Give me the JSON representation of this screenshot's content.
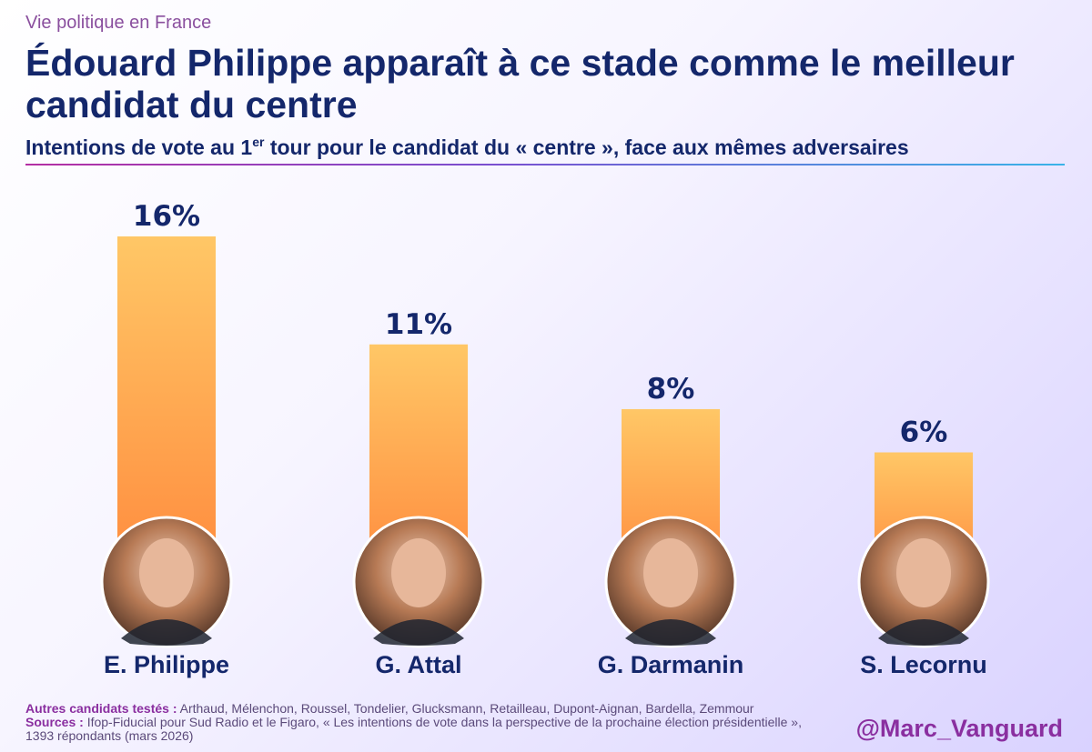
{
  "header": {
    "kicker": "Vie politique en France",
    "title": "Édouard Philippe apparaît à ce stade comme le meilleur candidat du centre",
    "subtitle_pre": "Intentions de vote au 1",
    "subtitle_sup": "er",
    "subtitle_post": " tour pour le candidat du « centre », face aux mêmes adversaires"
  },
  "chart_data": {
    "type": "bar",
    "categories": [
      "E. Philippe",
      "G. Attal",
      "G. Darmanin",
      "S. Lecornu"
    ],
    "values": [
      16,
      11,
      8,
      6
    ],
    "value_labels": [
      "16%",
      "11%",
      "8%",
      "6%"
    ],
    "unit": "%",
    "title": "Intentions de vote au 1er tour pour le candidat du « centre », face aux mêmes adversaires",
    "xlabel": "",
    "ylabel": "",
    "ylim": [
      0,
      20
    ],
    "colors": {
      "bar_top": "#ffc766",
      "bar_bottom": "#ff8a3d",
      "text": "#14276b"
    }
  },
  "footer": {
    "others_label": "Autres candidats testés :",
    "others_text": " Arthaud, Mélenchon, Roussel, Tondelier, Glucksmann, Retailleau, Dupont-Aignan, Bardella, Zemmour",
    "sources_label": "Sources :",
    "sources_text": " Ifop-Fiducial pour Sud Radio et le Figaro, « Les intentions de vote dans la perspective de la prochaine élection présidentielle », 1393 répondants (mars 2026)"
  },
  "handle": "@Marc_Vanguard"
}
